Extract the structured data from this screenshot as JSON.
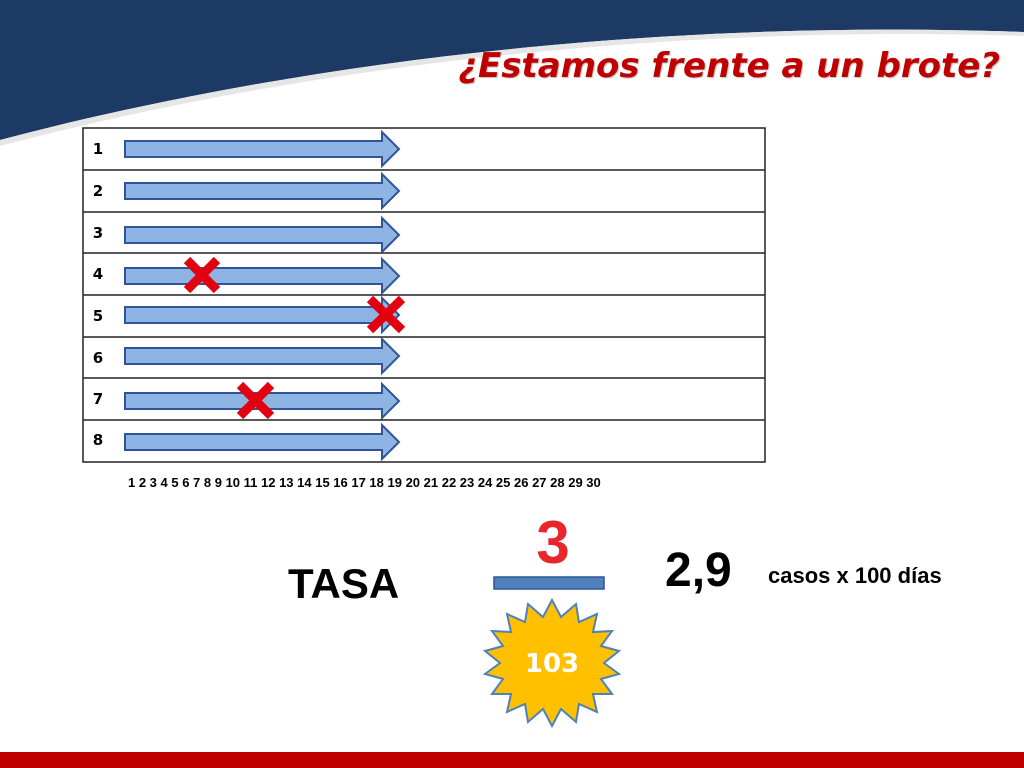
{
  "title": "¿Estamos frente a un brote?",
  "rows": [
    "1",
    "2",
    "3",
    "4",
    "5",
    "6",
    "7",
    "8"
  ],
  "day_axis": "1 2 3 4 5 6 7 8 9 10 11 12 13 14 15 16 17 18 19 20 21 22 23 24 25 26 27 28 29 30",
  "tasa": {
    "label": "TASA",
    "numerator": "3",
    "denominator": "103",
    "result": "2,9",
    "unit": "casos x 100 días"
  },
  "colors": {
    "header_navy": "#1c3a63",
    "accent_red": "#c00000",
    "arrow_fill": "#8db4e2",
    "arrow_stroke": "#2f5597",
    "cross_red": "#e3000f",
    "starburst_fill": "#ffc000",
    "bottom_bar": "#c00000"
  }
}
